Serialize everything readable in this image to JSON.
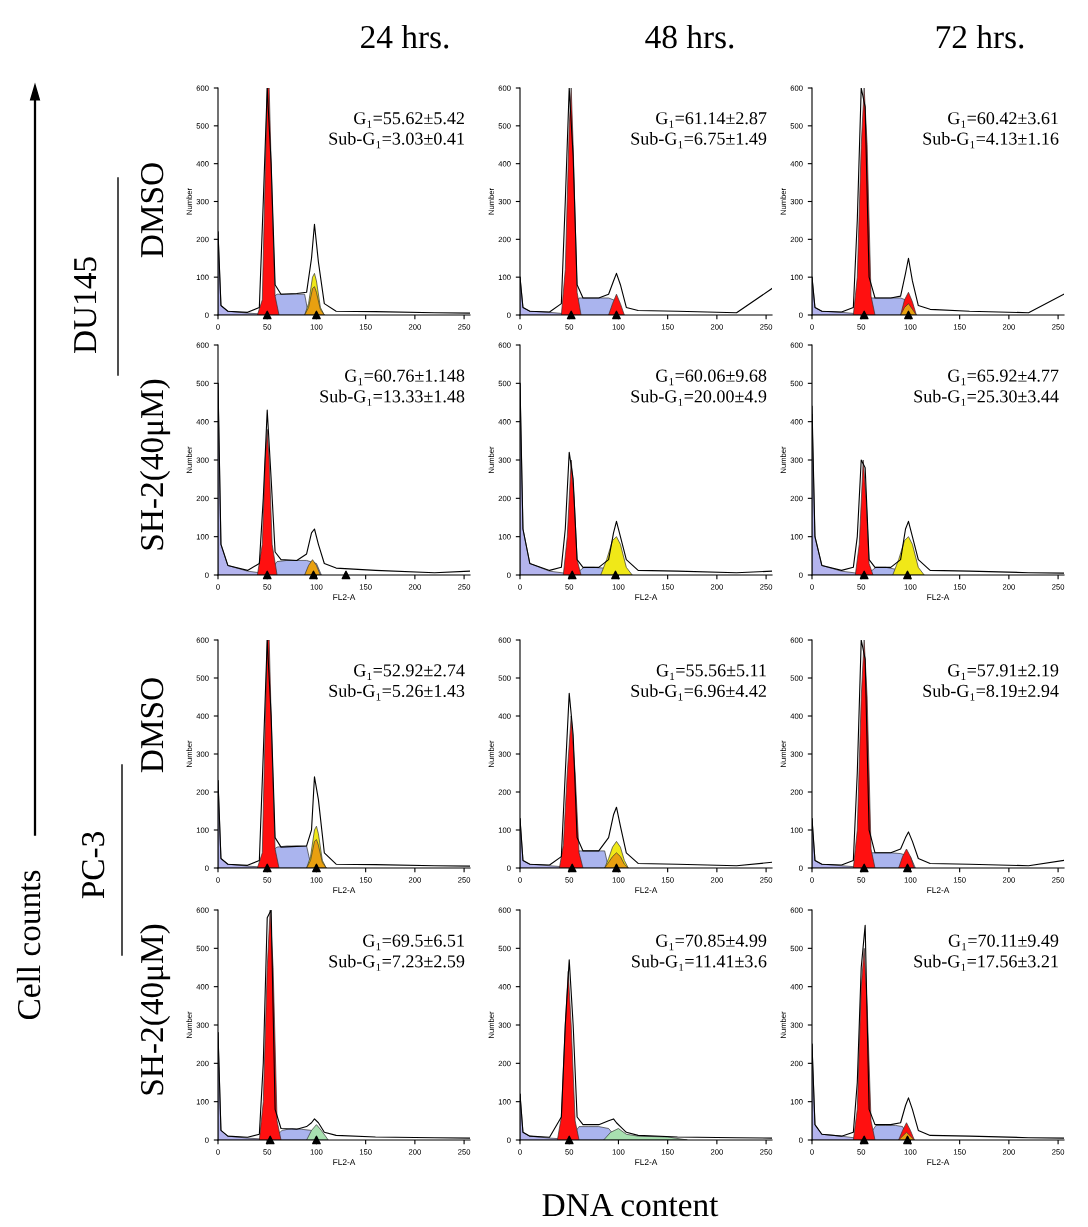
{
  "chart_data": [
    {
      "type": "line",
      "x": [
        0,
        3,
        10,
        30,
        42,
        46,
        50,
        54,
        58,
        64,
        80,
        90,
        95,
        98,
        102,
        108,
        120,
        160,
        220,
        256
      ],
      "xlim": [
        0,
        256
      ],
      "xticks": [
        0,
        50,
        100,
        150,
        200,
        250
      ],
      "ylim": [
        0,
        600
      ],
      "yticks": [
        0,
        100,
        200,
        300,
        400,
        500,
        600
      ],
      "ylabel": "Number",
      "annotations": [
        "G₁=55.62±5.42",
        "Sub-G₁=3.03±0.41"
      ],
      "series": [
        {
          "type": "area",
          "color": "#b4b4ee",
          "x": [
            0,
            3,
            10,
            30,
            60
          ],
          "values": [
            220,
            25,
            10,
            5,
            0
          ]
        },
        {
          "type": "area",
          "color": "#aab4ee",
          "x": [
            45,
            55,
            60,
            70,
            80,
            88,
            92
          ],
          "values": [
            0,
            45,
            55,
            55,
            55,
            55,
            0
          ]
        },
        {
          "type": "area",
          "color": "#ff1010",
          "x": [
            40,
            45,
            48,
            50,
            52,
            55,
            58,
            62
          ],
          "values": [
            0,
            40,
            380,
            600,
            600,
            300,
            50,
            0
          ]
        },
        {
          "type": "area",
          "color": "#f0e818",
          "x": [
            88,
            92,
            96,
            98,
            100,
            104,
            108
          ],
          "values": [
            0,
            30,
            100,
            110,
            90,
            20,
            0
          ]
        },
        {
          "type": "area",
          "color": "#e8a010",
          "x": [
            88,
            92,
            96,
            98,
            100,
            104,
            108
          ],
          "values": [
            0,
            20,
            70,
            75,
            60,
            15,
            0
          ]
        },
        {
          "type": "line",
          "color": "#000000",
          "values": [
            220,
            25,
            10,
            7,
            20,
            300,
            600,
            400,
            80,
            55,
            57,
            60,
            150,
            240,
            140,
            30,
            10,
            9,
            6,
            5
          ]
        },
        {
          "type": "scatter",
          "marker": "triangle",
          "color": "#000000",
          "x": [
            50,
            100
          ],
          "values": [
            0,
            0
          ]
        }
      ]
    },
    {
      "type": "line",
      "x": [
        0,
        3,
        10,
        30,
        42,
        46,
        50,
        54,
        58,
        64,
        80,
        90,
        95,
        98,
        102,
        108,
        120,
        160,
        220,
        256
      ],
      "xlim": [
        0,
        256
      ],
      "xticks": [
        0,
        50,
        100,
        150,
        200,
        250
      ],
      "ylim": [
        0,
        600
      ],
      "yticks": [
        0,
        100,
        200,
        300,
        400,
        500,
        600
      ],
      "ylabel": "Number",
      "annotations": [
        "G₁=61.14±2.87",
        "Sub-G₁=6.75±1.49"
      ],
      "series": [
        {
          "type": "area",
          "color": "#b4b4ee",
          "x": [
            0,
            3,
            10,
            30,
            60
          ],
          "values": [
            100,
            20,
            10,
            7,
            0
          ]
        },
        {
          "type": "area",
          "color": "#aab4ee",
          "x": [
            50,
            60,
            70,
            80,
            90,
            100,
            105
          ],
          "values": [
            0,
            45,
            45,
            45,
            45,
            35,
            0
          ]
        },
        {
          "type": "area",
          "color": "#ff1010",
          "x": [
            42,
            46,
            50,
            52,
            54,
            58,
            62
          ],
          "values": [
            0,
            120,
            500,
            600,
            450,
            60,
            0
          ]
        },
        {
          "type": "area",
          "color": "#ff1010",
          "x": [
            90,
            94,
            98,
            102,
            106
          ],
          "values": [
            0,
            30,
            55,
            30,
            0
          ]
        },
        {
          "type": "line",
          "color": "#000000",
          "values": [
            100,
            20,
            10,
            8,
            30,
            300,
            600,
            420,
            80,
            45,
            45,
            55,
            90,
            110,
            80,
            20,
            12,
            10,
            6,
            70
          ]
        },
        {
          "type": "scatter",
          "marker": "triangle",
          "color": "#000000",
          "x": [
            52,
            98
          ],
          "values": [
            0,
            0
          ]
        }
      ]
    },
    {
      "type": "line",
      "x": [
        0,
        3,
        10,
        30,
        42,
        46,
        50,
        54,
        58,
        64,
        80,
        90,
        95,
        98,
        102,
        108,
        120,
        160,
        220,
        256
      ],
      "xlim": [
        0,
        256
      ],
      "xticks": [
        0,
        50,
        100,
        150,
        200,
        250
      ],
      "ylim": [
        0,
        600
      ],
      "yticks": [
        0,
        100,
        200,
        300,
        400,
        500,
        600
      ],
      "ylabel": "Number",
      "annotations": [
        "G₁=60.42±3.61",
        "Sub-G₁=4.13±1.16"
      ],
      "series": [
        {
          "type": "area",
          "color": "#b4b4ee",
          "x": [
            0,
            3,
            10,
            30,
            60
          ],
          "values": [
            100,
            20,
            10,
            7,
            0
          ]
        },
        {
          "type": "area",
          "color": "#aab4ee",
          "x": [
            50,
            60,
            70,
            80,
            90,
            100,
            105
          ],
          "values": [
            0,
            45,
            45,
            45,
            45,
            35,
            0
          ]
        },
        {
          "type": "area",
          "color": "#ff1010",
          "x": [
            42,
            46,
            50,
            53,
            56,
            60,
            64
          ],
          "values": [
            0,
            100,
            450,
            600,
            450,
            50,
            0
          ]
        },
        {
          "type": "area",
          "color": "#ff1010",
          "x": [
            90,
            94,
            98,
            102,
            106
          ],
          "values": [
            0,
            40,
            60,
            35,
            0
          ]
        },
        {
          "type": "area",
          "color": "#e8a010",
          "x": [
            90,
            94,
            98,
            102,
            106
          ],
          "values": [
            0,
            20,
            30,
            15,
            0
          ]
        },
        {
          "type": "line",
          "color": "#000000",
          "values": [
            100,
            20,
            10,
            8,
            20,
            250,
            600,
            550,
            100,
            45,
            45,
            50,
            110,
            150,
            90,
            25,
            15,
            10,
            6,
            55
          ]
        },
        {
          "type": "scatter",
          "marker": "triangle",
          "color": "#000000",
          "x": [
            53,
            98
          ],
          "values": [
            0,
            0
          ]
        }
      ]
    },
    {
      "type": "line",
      "x": [
        0,
        3,
        10,
        30,
        42,
        46,
        50,
        54,
        58,
        64,
        80,
        90,
        95,
        98,
        102,
        108,
        120,
        160,
        220,
        256
      ],
      "xlim": [
        0,
        256
      ],
      "xticks": [
        0,
        50,
        100,
        150,
        200,
        250
      ],
      "ylim": [
        0,
        600
      ],
      "yticks": [
        0,
        100,
        200,
        300,
        400,
        500,
        600
      ],
      "xlabel": "FL2-A",
      "ylabel": "Number",
      "annotations": [
        "G₁=60.76±1.148",
        "Sub-G₁=13.33±1.48"
      ],
      "series": [
        {
          "type": "area",
          "color": "#b4b4ee",
          "x": [
            0,
            3,
            10,
            30,
            60
          ],
          "values": [
            500,
            80,
            25,
            10,
            0
          ]
        },
        {
          "type": "area",
          "color": "#aab4ee",
          "x": [
            50,
            60,
            70,
            80,
            90,
            100,
            105
          ],
          "values": [
            0,
            35,
            38,
            38,
            38,
            30,
            0
          ]
        },
        {
          "type": "area",
          "color": "#ff1010",
          "x": [
            40,
            45,
            48,
            50,
            52,
            55,
            60
          ],
          "values": [
            0,
            80,
            300,
            380,
            300,
            80,
            0
          ]
        },
        {
          "type": "area",
          "color": "#e8a010",
          "x": [
            88,
            92,
            96,
            100,
            104
          ],
          "values": [
            0,
            25,
            40,
            25,
            0
          ]
        },
        {
          "type": "line",
          "color": "#000000",
          "values": [
            500,
            80,
            25,
            12,
            30,
            200,
            430,
            250,
            60,
            40,
            38,
            55,
            110,
            120,
            80,
            30,
            18,
            12,
            6,
            10
          ]
        },
        {
          "type": "scatter",
          "marker": "triangle",
          "color": "#000000",
          "x": [
            50,
            97,
            130
          ],
          "values": [
            0,
            0,
            0
          ]
        }
      ]
    },
    {
      "type": "line",
      "x": [
        0,
        3,
        10,
        30,
        42,
        46,
        50,
        54,
        58,
        64,
        80,
        90,
        95,
        98,
        102,
        108,
        120,
        160,
        220,
        256
      ],
      "xlim": [
        0,
        256
      ],
      "xticks": [
        0,
        50,
        100,
        150,
        200,
        250
      ],
      "ylim": [
        0,
        600
      ],
      "yticks": [
        0,
        100,
        200,
        300,
        400,
        500,
        600
      ],
      "xlabel": "FL2-A",
      "ylabel": "Number",
      "annotations": [
        "G₁=60.06±9.68",
        "Sub-G₁=20.00±4.9"
      ],
      "series": [
        {
          "type": "area",
          "color": "#b4b4ee",
          "x": [
            0,
            3,
            10,
            30,
            60
          ],
          "values": [
            500,
            120,
            30,
            10,
            0
          ]
        },
        {
          "type": "area",
          "color": "#aab4ee",
          "x": [
            55,
            65,
            75,
            85,
            95
          ],
          "values": [
            0,
            20,
            20,
            18,
            0
          ]
        },
        {
          "type": "area",
          "color": "#ff1010",
          "x": [
            44,
            48,
            52,
            55,
            58,
            62
          ],
          "values": [
            0,
            100,
            300,
            200,
            40,
            0
          ]
        },
        {
          "type": "area",
          "color": "#f0e818",
          "x": [
            82,
            88,
            94,
            98,
            102,
            108,
            114
          ],
          "values": [
            0,
            40,
            90,
            100,
            80,
            20,
            0
          ]
        },
        {
          "type": "line",
          "color": "#000000",
          "values": [
            500,
            120,
            30,
            12,
            20,
            120,
            320,
            250,
            40,
            20,
            20,
            40,
            110,
            140,
            100,
            40,
            12,
            10,
            6,
            10
          ]
        },
        {
          "type": "scatter",
          "marker": "triangle",
          "color": "#000000",
          "x": [
            53,
            97
          ],
          "values": [
            0,
            0
          ]
        }
      ]
    },
    {
      "type": "line",
      "x": [
        0,
        3,
        10,
        30,
        42,
        46,
        50,
        54,
        58,
        64,
        80,
        90,
        95,
        98,
        102,
        108,
        120,
        160,
        220,
        256
      ],
      "xlim": [
        0,
        256
      ],
      "xticks": [
        0,
        50,
        100,
        150,
        200,
        250
      ],
      "ylim": [
        0,
        600
      ],
      "yticks": [
        0,
        100,
        200,
        300,
        400,
        500,
        600
      ],
      "xlabel": "FL2-A",
      "ylabel": "Number",
      "annotations": [
        "G₁=65.92±4.77",
        "Sub-G₁=25.30±3.44"
      ],
      "series": [
        {
          "type": "area",
          "color": "#b4b4ee",
          "x": [
            0,
            3,
            10,
            30,
            60
          ],
          "values": [
            420,
            100,
            25,
            10,
            0
          ]
        },
        {
          "type": "area",
          "color": "#aab4ee",
          "x": [
            55,
            65,
            75,
            85,
            95
          ],
          "values": [
            0,
            20,
            20,
            15,
            0
          ]
        },
        {
          "type": "area",
          "color": "#ff1010",
          "x": [
            44,
            48,
            52,
            55,
            58,
            62
          ],
          "values": [
            0,
            80,
            300,
            200,
            30,
            0
          ]
        },
        {
          "type": "area",
          "color": "#f0e818",
          "x": [
            82,
            88,
            94,
            98,
            102,
            108,
            114
          ],
          "values": [
            0,
            40,
            90,
            100,
            80,
            20,
            0
          ]
        },
        {
          "type": "line",
          "color": "#000000",
          "values": [
            440,
            100,
            25,
            12,
            20,
            100,
            300,
            280,
            40,
            20,
            20,
            40,
            120,
            140,
            100,
            40,
            12,
            10,
            6,
            5
          ]
        },
        {
          "type": "scatter",
          "marker": "triangle",
          "color": "#000000",
          "x": [
            53,
            97
          ],
          "values": [
            0,
            0
          ]
        }
      ]
    },
    {
      "type": "line",
      "x": [
        0,
        3,
        10,
        30,
        42,
        46,
        50,
        54,
        58,
        64,
        80,
        90,
        95,
        98,
        102,
        108,
        120,
        160,
        220,
        256
      ],
      "xlim": [
        0,
        256
      ],
      "xticks": [
        0,
        50,
        100,
        150,
        200,
        250
      ],
      "ylim": [
        0,
        600
      ],
      "yticks": [
        0,
        100,
        200,
        300,
        400,
        500,
        600
      ],
      "xlabel": "FL2-A",
      "ylabel": "Number",
      "annotations": [
        "G₁=52.92±2.74",
        "Sub-G₁=5.26±1.43"
      ],
      "series": [
        {
          "type": "area",
          "color": "#b4b4ee",
          "x": [
            0,
            3,
            10,
            30,
            60
          ],
          "values": [
            230,
            25,
            10,
            5,
            0
          ]
        },
        {
          "type": "area",
          "color": "#aab4ee",
          "x": [
            45,
            55,
            60,
            70,
            80,
            90,
            95
          ],
          "values": [
            0,
            45,
            55,
            58,
            58,
            58,
            0
          ]
        },
        {
          "type": "area",
          "color": "#ff1010",
          "x": [
            40,
            45,
            48,
            50,
            52,
            55,
            58,
            62
          ],
          "values": [
            0,
            40,
            380,
            600,
            600,
            300,
            50,
            0
          ]
        },
        {
          "type": "area",
          "color": "#f0e818",
          "x": [
            90,
            94,
            98,
            100,
            102,
            106,
            110
          ],
          "values": [
            0,
            30,
            100,
            110,
            90,
            20,
            0
          ]
        },
        {
          "type": "area",
          "color": "#e8a010",
          "x": [
            90,
            94,
            98,
            100,
            102,
            106,
            110
          ],
          "values": [
            0,
            20,
            70,
            75,
            60,
            15,
            0
          ]
        },
        {
          "type": "line",
          "color": "#000000",
          "values": [
            230,
            25,
            10,
            7,
            20,
            300,
            600,
            400,
            80,
            55,
            57,
            58,
            100,
            240,
            180,
            40,
            10,
            9,
            6,
            5
          ]
        },
        {
          "type": "scatter",
          "marker": "triangle",
          "color": "#000000",
          "x": [
            50,
            100
          ],
          "values": [
            0,
            0
          ]
        }
      ]
    },
    {
      "type": "line",
      "x": [
        0,
        3,
        10,
        30,
        42,
        46,
        50,
        54,
        58,
        64,
        80,
        90,
        95,
        98,
        102,
        108,
        120,
        160,
        220,
        256
      ],
      "xlim": [
        0,
        256
      ],
      "xticks": [
        0,
        50,
        100,
        150,
        200,
        250
      ],
      "ylim": [
        0,
        600
      ],
      "yticks": [
        0,
        100,
        200,
        300,
        400,
        500,
        600
      ],
      "xlabel": "FL2-A",
      "ylabel": "Number",
      "annotations": [
        "G₁=55.56±5.11",
        "Sub-G₁=6.96±4.42"
      ],
      "series": [
        {
          "type": "area",
          "color": "#b4b4ee",
          "x": [
            0,
            3,
            10,
            30,
            60
          ],
          "values": [
            130,
            20,
            10,
            6,
            0
          ]
        },
        {
          "type": "area",
          "color": "#aab4ee",
          "x": [
            50,
            60,
            70,
            80,
            86,
            90
          ],
          "values": [
            0,
            45,
            45,
            45,
            45,
            0
          ]
        },
        {
          "type": "area",
          "color": "#ff1010",
          "x": [
            40,
            44,
            48,
            52,
            56,
            60,
            64
          ],
          "values": [
            0,
            60,
            250,
            400,
            250,
            40,
            0
          ]
        },
        {
          "type": "area",
          "color": "#f0e818",
          "x": [
            86,
            90,
            94,
            98,
            102,
            106,
            110
          ],
          "values": [
            0,
            25,
            55,
            70,
            55,
            20,
            0
          ]
        },
        {
          "type": "area",
          "color": "#e8a010",
          "x": [
            86,
            90,
            94,
            98,
            102,
            106,
            110
          ],
          "values": [
            0,
            15,
            30,
            40,
            30,
            10,
            0
          ]
        },
        {
          "type": "line",
          "color": "#000000",
          "values": [
            130,
            20,
            10,
            8,
            30,
            250,
            460,
            350,
            80,
            45,
            45,
            80,
            140,
            160,
            110,
            40,
            12,
            10,
            6,
            15
          ]
        },
        {
          "type": "scatter",
          "marker": "triangle",
          "color": "#000000",
          "x": [
            53,
            98
          ],
          "values": [
            0,
            0
          ]
        }
      ]
    },
    {
      "type": "line",
      "x": [
        0,
        3,
        10,
        30,
        42,
        46,
        50,
        54,
        58,
        64,
        80,
        90,
        95,
        98,
        102,
        108,
        120,
        160,
        220,
        256
      ],
      "xlim": [
        0,
        256
      ],
      "xticks": [
        0,
        50,
        100,
        150,
        200,
        250
      ],
      "ylim": [
        0,
        600
      ],
      "yticks": [
        0,
        100,
        200,
        300,
        400,
        500,
        600
      ],
      "xlabel": "FL2-A",
      "ylabel": "Number",
      "annotations": [
        "G₁=57.91±2.19",
        "Sub-G₁=8.19±2.94"
      ],
      "series": [
        {
          "type": "area",
          "color": "#b4b4ee",
          "x": [
            0,
            3,
            10,
            30,
            60
          ],
          "values": [
            130,
            20,
            10,
            6,
            0
          ]
        },
        {
          "type": "area",
          "color": "#aab4ee",
          "x": [
            50,
            60,
            70,
            80,
            90,
            100,
            105
          ],
          "values": [
            0,
            40,
            40,
            40,
            38,
            30,
            0
          ]
        },
        {
          "type": "area",
          "color": "#ff1010",
          "x": [
            42,
            46,
            50,
            53,
            56,
            60,
            64
          ],
          "values": [
            0,
            100,
            450,
            600,
            450,
            50,
            0
          ]
        },
        {
          "type": "area",
          "color": "#ff1010",
          "x": [
            88,
            92,
            96,
            100,
            104
          ],
          "values": [
            0,
            30,
            50,
            30,
            0
          ]
        },
        {
          "type": "line",
          "color": "#000000",
          "values": [
            130,
            20,
            10,
            8,
            20,
            250,
            600,
            550,
            100,
            40,
            40,
            50,
            80,
            95,
            70,
            25,
            12,
            10,
            6,
            20
          ]
        },
        {
          "type": "scatter",
          "marker": "triangle",
          "color": "#000000",
          "x": [
            53,
            97
          ],
          "values": [
            0,
            0
          ]
        }
      ]
    },
    {
      "type": "line",
      "x": [
        0,
        3,
        10,
        30,
        42,
        46,
        50,
        54,
        58,
        64,
        80,
        90,
        95,
        98,
        102,
        108,
        120,
        160,
        220,
        256
      ],
      "xlim": [
        0,
        256
      ],
      "xticks": [
        0,
        50,
        100,
        150,
        200,
        250
      ],
      "ylim": [
        0,
        600
      ],
      "yticks": [
        0,
        100,
        200,
        300,
        400,
        500,
        600
      ],
      "xlabel": "FL2-A",
      "ylabel": "Number",
      "annotations": [
        "G₁=69.5±6.51",
        "Sub-G₁=7.23±2.59"
      ],
      "series": [
        {
          "type": "area",
          "color": "#b4b4ee",
          "x": [
            0,
            3,
            10,
            30,
            60
          ],
          "values": [
            280,
            25,
            10,
            5,
            0
          ]
        },
        {
          "type": "area",
          "color": "#aab4ee",
          "x": [
            55,
            65,
            75,
            85,
            95,
            102
          ],
          "values": [
            0,
            25,
            30,
            28,
            25,
            0
          ]
        },
        {
          "type": "area",
          "color": "#ff1010",
          "x": [
            42,
            46,
            50,
            53,
            56,
            60,
            64
          ],
          "values": [
            0,
            100,
            450,
            600,
            450,
            50,
            0
          ]
        },
        {
          "type": "area",
          "color": "#a8e0b0",
          "x": [
            90,
            95,
            100,
            105,
            112
          ],
          "values": [
            0,
            25,
            40,
            25,
            0
          ]
        },
        {
          "type": "line",
          "color": "#000000",
          "values": [
            280,
            25,
            10,
            7,
            15,
            200,
            580,
            600,
            80,
            30,
            28,
            35,
            45,
            55,
            45,
            20,
            12,
            8,
            6,
            5
          ]
        },
        {
          "type": "scatter",
          "marker": "triangle",
          "color": "#000000",
          "x": [
            53,
            100
          ],
          "values": [
            0,
            0
          ]
        }
      ]
    },
    {
      "type": "line",
      "x": [
        0,
        3,
        10,
        30,
        42,
        46,
        50,
        54,
        58,
        64,
        80,
        90,
        95,
        98,
        102,
        108,
        120,
        160,
        220,
        256
      ],
      "xlim": [
        0,
        256
      ],
      "xticks": [
        0,
        50,
        100,
        150,
        200,
        250
      ],
      "ylim": [
        0,
        600
      ],
      "yticks": [
        0,
        100,
        200,
        300,
        400,
        500,
        600
      ],
      "xlabel": "FL2-A",
      "ylabel": "Number",
      "annotations": [
        "G₁=70.85±4.99",
        "Sub-G₁=11.41±3.6"
      ],
      "series": [
        {
          "type": "area",
          "color": "#b4b4ee",
          "x": [
            0,
            3,
            10,
            30,
            60
          ],
          "values": [
            120,
            20,
            10,
            5,
            0
          ]
        },
        {
          "type": "area",
          "color": "#aab4ee",
          "x": [
            50,
            60,
            70,
            80,
            90,
            100
          ],
          "values": [
            0,
            35,
            35,
            35,
            30,
            0
          ]
        },
        {
          "type": "area",
          "color": "#ff1010",
          "x": [
            38,
            42,
            46,
            49,
            52,
            56,
            60
          ],
          "values": [
            0,
            60,
            300,
            440,
            300,
            50,
            0
          ]
        },
        {
          "type": "area",
          "color": "#a8e0b0",
          "x": [
            85,
            92,
            100,
            108,
            120,
            150,
            170
          ],
          "values": [
            0,
            20,
            30,
            15,
            10,
            8,
            0
          ]
        },
        {
          "type": "line",
          "color": "#000000",
          "values": [
            120,
            20,
            10,
            7,
            60,
            300,
            470,
            300,
            60,
            40,
            40,
            50,
            55,
            45,
            35,
            20,
            12,
            8,
            6,
            5
          ]
        },
        {
          "type": "scatter",
          "marker": "triangle",
          "color": "#000000",
          "x": [
            50
          ],
          "values": [
            0
          ]
        }
      ]
    },
    {
      "type": "line",
      "x": [
        0,
        3,
        10,
        30,
        42,
        46,
        50,
        54,
        58,
        64,
        80,
        90,
        95,
        98,
        102,
        108,
        120,
        160,
        220,
        256
      ],
      "xlim": [
        0,
        256
      ],
      "xticks": [
        0,
        50,
        100,
        150,
        200,
        250
      ],
      "ylim": [
        0,
        600
      ],
      "yticks": [
        0,
        100,
        200,
        300,
        400,
        500,
        600
      ],
      "xlabel": "FL2-A",
      "ylabel": "Number",
      "annotations": [
        "G₁=70.11±9.49",
        "Sub-G₁=17.56±3.21"
      ],
      "series": [
        {
          "type": "area",
          "color": "#b4b4ee",
          "x": [
            0,
            3,
            10,
            30,
            60
          ],
          "values": [
            250,
            40,
            15,
            10,
            0
          ]
        },
        {
          "type": "area",
          "color": "#aab4ee",
          "x": [
            55,
            65,
            75,
            85,
            92,
            100
          ],
          "values": [
            0,
            38,
            38,
            38,
            35,
            0
          ]
        },
        {
          "type": "area",
          "color": "#ff1010",
          "x": [
            42,
            46,
            50,
            53,
            56,
            60,
            64
          ],
          "values": [
            0,
            80,
            400,
            500,
            350,
            50,
            0
          ]
        },
        {
          "type": "area",
          "color": "#ff1010",
          "x": [
            88,
            92,
            96,
            100,
            104
          ],
          "values": [
            0,
            25,
            45,
            25,
            0
          ]
        },
        {
          "type": "area",
          "color": "#e8a010",
          "x": [
            88,
            92,
            96,
            100,
            104
          ],
          "values": [
            0,
            10,
            20,
            10,
            0
          ]
        },
        {
          "type": "line",
          "color": "#000000",
          "values": [
            250,
            40,
            15,
            10,
            20,
            150,
            450,
            560,
            80,
            40,
            40,
            45,
            90,
            110,
            80,
            25,
            12,
            10,
            6,
            5
          ]
        },
        {
          "type": "scatter",
          "marker": "triangle",
          "color": "#000000",
          "x": [
            53,
            97
          ],
          "values": [
            0,
            0
          ]
        }
      ]
    },
    {
      "type": "other",
      "annotations": [
        "24 hrs.",
        "48 hrs.",
        "72 hrs.",
        "DU145",
        "PC-3",
        "DMSO",
        "SH-2(40μM)",
        "DMSO",
        "SH-2(40μM)",
        "Cell counts",
        "DNA content"
      ]
    }
  ]
}
